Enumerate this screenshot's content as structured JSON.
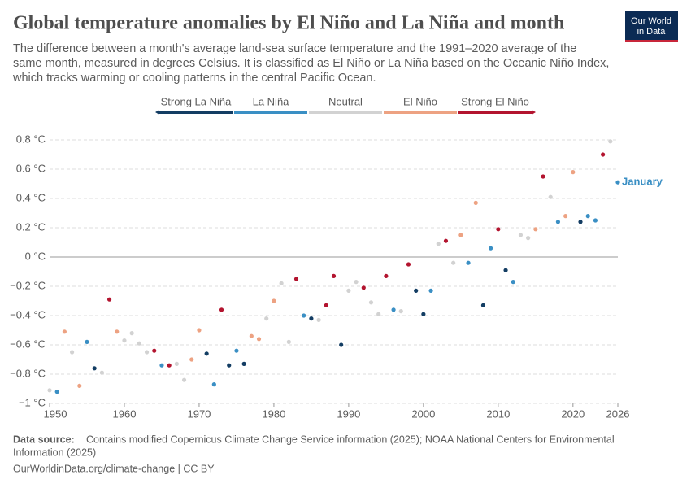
{
  "chart_data": {
    "type": "scatter",
    "title": "Global temperature anomalies by El Niño and La Niña and month",
    "subtitle": [
      "The difference between a month's average land-sea surface temperature and the 1991–2020 average of the",
      "same month, measured in degrees Celsius. It is classified as El Niño or La Niña based on the Oceanic Niño Index,",
      "which tracks warming or cooling patterns in the central Pacific Ocean."
    ],
    "logo": [
      "Our World",
      "in Data"
    ],
    "legend": [
      {
        "name": "Strong La Niña",
        "color": "#133d63"
      },
      {
        "name": "La Niña",
        "color": "#3a8fc4"
      },
      {
        "name": "Neutral",
        "color": "#d2d2d2"
      },
      {
        "name": "El Niño",
        "color": "#eda282"
      },
      {
        "name": "Strong El Niño",
        "color": "#b3142f"
      }
    ],
    "series_label": "January",
    "x": [
      1950,
      1951,
      1952,
      1953,
      1954,
      1955,
      1956,
      1957,
      1958,
      1959,
      1960,
      1961,
      1962,
      1963,
      1964,
      1965,
      1966,
      1967,
      1968,
      1969,
      1970,
      1971,
      1972,
      1973,
      1974,
      1975,
      1976,
      1977,
      1978,
      1979,
      1980,
      1981,
      1982,
      1983,
      1984,
      1985,
      1986,
      1987,
      1988,
      1989,
      1990,
      1991,
      1992,
      1993,
      1994,
      1995,
      1996,
      1997,
      1998,
      1999,
      2000,
      2001,
      2002,
      2003,
      2004,
      2005,
      2006,
      2007,
      2008,
      2009,
      2010,
      2011,
      2012,
      2013,
      2014,
      2015,
      2016,
      2017,
      2018,
      2019,
      2020,
      2021,
      2022,
      2023,
      2024,
      2025,
      2026
    ],
    "values": [
      -0.91,
      -0.92,
      -0.51,
      -0.65,
      -0.88,
      -0.58,
      -0.76,
      -0.79,
      -0.29,
      -0.51,
      -0.57,
      -0.52,
      -0.59,
      -0.65,
      -0.64,
      -0.74,
      -0.74,
      -0.73,
      -0.84,
      -0.7,
      -0.5,
      -0.66,
      -0.87,
      -0.36,
      -0.74,
      -0.64,
      -0.73,
      -0.54,
      -0.56,
      -0.42,
      -0.3,
      -0.18,
      -0.58,
      -0.15,
      -0.4,
      -0.42,
      -0.43,
      -0.33,
      -0.13,
      -0.6,
      -0.23,
      -0.17,
      -0.21,
      -0.31,
      -0.39,
      -0.13,
      -0.36,
      -0.37,
      -0.05,
      -0.23,
      -0.39,
      -0.23,
      0.09,
      0.11,
      -0.04,
      0.15,
      -0.04,
      0.37,
      -0.33,
      0.06,
      0.19,
      -0.09,
      -0.17,
      0.15,
      0.13,
      0.19,
      0.55,
      0.41,
      0.24,
      0.28,
      0.58,
      0.24,
      0.28,
      0.25,
      0.7,
      0.79,
      0.51
    ],
    "category": [
      "Neutral",
      "La Niña",
      "El Niño",
      "Neutral",
      "El Niño",
      "La Niña",
      "Strong La Niña",
      "Neutral",
      "Strong El Niño",
      "El Niño",
      "Neutral",
      "Neutral",
      "Neutral",
      "Neutral",
      "Strong El Niño",
      "La Niña",
      "Strong El Niño",
      "Neutral",
      "Neutral",
      "El Niño",
      "El Niño",
      "Strong La Niña",
      "La Niña",
      "Strong El Niño",
      "Strong La Niña",
      "La Niña",
      "Strong La Niña",
      "El Niño",
      "El Niño",
      "Neutral",
      "El Niño",
      "Neutral",
      "Neutral",
      "Strong El Niño",
      "La Niña",
      "Strong La Niña",
      "Neutral",
      "Strong El Niño",
      "Strong El Niño",
      "Strong La Niña",
      "Neutral",
      "Neutral",
      "Strong El Niño",
      "Neutral",
      "Neutral",
      "Strong El Niño",
      "La Niña",
      "Neutral",
      "Strong El Niño",
      "Strong La Niña",
      "Strong La Niña",
      "La Niña",
      "Neutral",
      "Strong El Niño",
      "Neutral",
      "El Niño",
      "La Niña",
      "El Niño",
      "Strong La Niña",
      "La Niña",
      "Strong El Niño",
      "Strong La Niña",
      "La Niña",
      "Neutral",
      "Neutral",
      "El Niño",
      "Strong El Niño",
      "Neutral",
      "La Niña",
      "El Niño",
      "El Niño",
      "Strong La Niña",
      "La Niña",
      "La Niña",
      "Strong El Niño",
      "Neutral",
      "La Niña"
    ],
    "xlim": [
      1950,
      2026
    ],
    "xticks": [
      1950,
      1960,
      1970,
      1980,
      1990,
      2000,
      2010,
      2020,
      2026
    ],
    "ylim": [
      -1,
      0.8
    ],
    "yticks": [
      {
        "value": -1,
        "label": "−1 °C"
      },
      {
        "value": -0.8,
        "label": "−0.8 °C"
      },
      {
        "value": -0.6,
        "label": "−0.6 °C"
      },
      {
        "value": -0.4,
        "label": "−0.4 °C"
      },
      {
        "value": -0.2,
        "label": "−0.2 °C"
      },
      {
        "value": 0,
        "label": "0 °C"
      },
      {
        "value": 0.2,
        "label": "0.2 °C"
      },
      {
        "value": 0.4,
        "label": "0.4 °C"
      },
      {
        "value": 0.6,
        "label": "0.6 °C"
      },
      {
        "value": 0.8,
        "label": "0.8 °C"
      }
    ],
    "grid": true,
    "source_label": "Data source:",
    "source": [
      "Contains modified Copernicus Climate Change Service information (2025); NOAA National Centers for Environmental",
      "Information (2025)"
    ],
    "footer": "OurWorldinData.org/climate-change | CC BY"
  }
}
